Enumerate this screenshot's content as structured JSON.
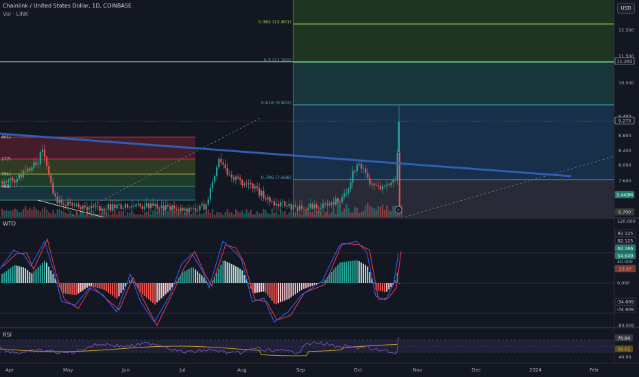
{
  "header": {
    "symbol": "Chainlink / United States Dollar, 1D, COINBASE",
    "volume_label": "Vol · LINK",
    "currency_button": "USD"
  },
  "panes": {
    "wto_label": "WTO",
    "rsi_label": "RSI"
  },
  "price_axis": {
    "ticks": [
      "12.500",
      "11.500",
      "10.500",
      "9.400",
      "8.800",
      "8.400",
      "8.000",
      "7.600"
    ],
    "badges": [
      {
        "text": "11.292",
        "bg": "#131722",
        "fg": "#d1d4dc",
        "border": "#d1d4dc"
      },
      {
        "text": "9.273",
        "bg": "#131722",
        "fg": "#d1d4dc",
        "border": "#d1d4dc"
      },
      {
        "text": "3.443M",
        "bg": "#1e7b6f",
        "fg": "#ffffff",
        "border": "#1e7b6f"
      },
      {
        "text": "6.700",
        "bg": "#3a3a3a",
        "fg": "#d1d4dc",
        "border": "#3a3a3a"
      }
    ]
  },
  "fib_levels": [
    {
      "label": "0.382 (12.801)",
      "color": "#b5d94c"
    },
    {
      "label": "0.5 (11.302)",
      "color": "#55c38a"
    },
    {
      "label": "0.618 (9.803)",
      "color": "#3cb8a8"
    },
    {
      "label": "0.786 (7.668)",
      "color": "#5aa0c8"
    }
  ],
  "left_fib_labels": [
    "801)",
    "177)",
    "791)",
    "488)"
  ],
  "wto_axis": {
    "ticks": [
      "120.000",
      "40.000",
      "0.000",
      "-80.000"
    ],
    "badges": [
      {
        "text": "82.125",
        "bg": "#131722",
        "fg": "#d1d4dc"
      },
      {
        "text": "82.125",
        "bg": "#131722",
        "fg": "#d1d4dc"
      },
      {
        "text": "62.166",
        "bg": "#1e7b6f",
        "fg": "#ffffff"
      },
      {
        "text": "54.649",
        "bg": "#1e7b6f",
        "fg": "#ffffff"
      },
      {
        "text": "29.97",
        "bg": "#7a3b2e",
        "fg": "#f0a090"
      },
      {
        "text": "-34.609",
        "bg": "#131722",
        "fg": "#d1d4dc"
      },
      {
        "text": "-34.609",
        "bg": "#131722",
        "fg": "#d1d4dc"
      }
    ]
  },
  "rsi_axis": {
    "ticks": [
      "40.00"
    ],
    "badges": [
      {
        "text": "75.94",
        "bg": "#3a3a44",
        "fg": "#ffffff"
      },
      {
        "text": "55.01",
        "bg": "#5a4b20",
        "fg": "#e0c060"
      }
    ]
  },
  "time_axis": [
    "Apr",
    "May",
    "Jun",
    "Jul",
    "Aug",
    "Sep",
    "Oct",
    "Nov",
    "Dec",
    "2024",
    "Feb"
  ],
  "colors": {
    "background": "#131722",
    "up": "#26a69a",
    "down": "#ef5350",
    "trendline": "#2962ff",
    "wto_line1": "#2962ff",
    "wto_line2": "#f23645",
    "rsi_line": "#7e57c2",
    "rsi_ma": "#c9a227"
  }
}
